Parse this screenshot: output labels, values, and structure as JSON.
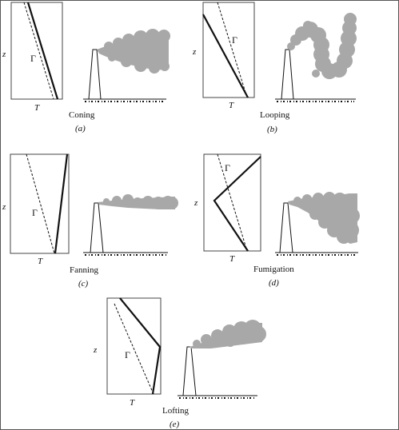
{
  "colors": {
    "background": "#ffffff",
    "plume": "#a8a8a8",
    "line": "#111111",
    "frame": "#444444"
  },
  "panels": [
    {
      "id": "a",
      "name": "Coning",
      "letter": "(a)",
      "z_label": "z",
      "t_label": "T",
      "gamma_label": "Γ"
    },
    {
      "id": "b",
      "name": "Looping",
      "letter": "(b)",
      "z_label": "z",
      "t_label": "T",
      "gamma_label": "Γ"
    },
    {
      "id": "c",
      "name": "Fanning",
      "letter": "(c)",
      "z_label": "z",
      "t_label": "T",
      "gamma_label": "Γ"
    },
    {
      "id": "d",
      "name": "Fumigation",
      "letter": "(d)",
      "z_label": "z",
      "t_label": "T",
      "gamma_label": "Γ"
    },
    {
      "id": "e",
      "name": "Lofting",
      "letter": "(e)",
      "z_label": "z",
      "t_label": "T",
      "gamma_label": "Γ"
    }
  ]
}
